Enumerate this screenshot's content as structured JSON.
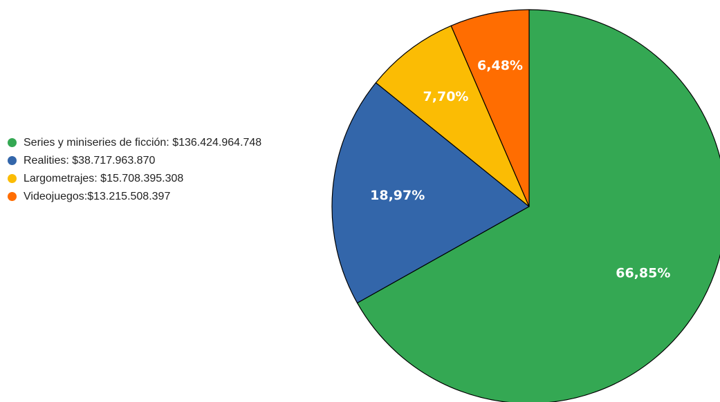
{
  "chart_data": {
    "type": "pie",
    "title": "",
    "legend_position": "left",
    "slices": [
      {
        "legend_label": "Series y miniseries de ficción: $136.424.964.748",
        "value": 136424964748,
        "percent": 66.85,
        "percent_label": "66,85%",
        "color": "#34a853"
      },
      {
        "legend_label": "Realities: $38.717.963.870",
        "value": 38717963870,
        "percent": 18.97,
        "percent_label": "18,97%",
        "color": "#3366aa"
      },
      {
        "legend_label": "Largometrajes: $15.708.395.308",
        "value": 15708395308,
        "percent": 7.7,
        "percent_label": "7,70%",
        "color": "#fbbc04"
      },
      {
        "legend_label": "Videojuegos:$13.215.508.397",
        "value": 13215508397,
        "percent": 6.48,
        "percent_label": "6,48%",
        "color": "#ff6d01"
      }
    ]
  }
}
